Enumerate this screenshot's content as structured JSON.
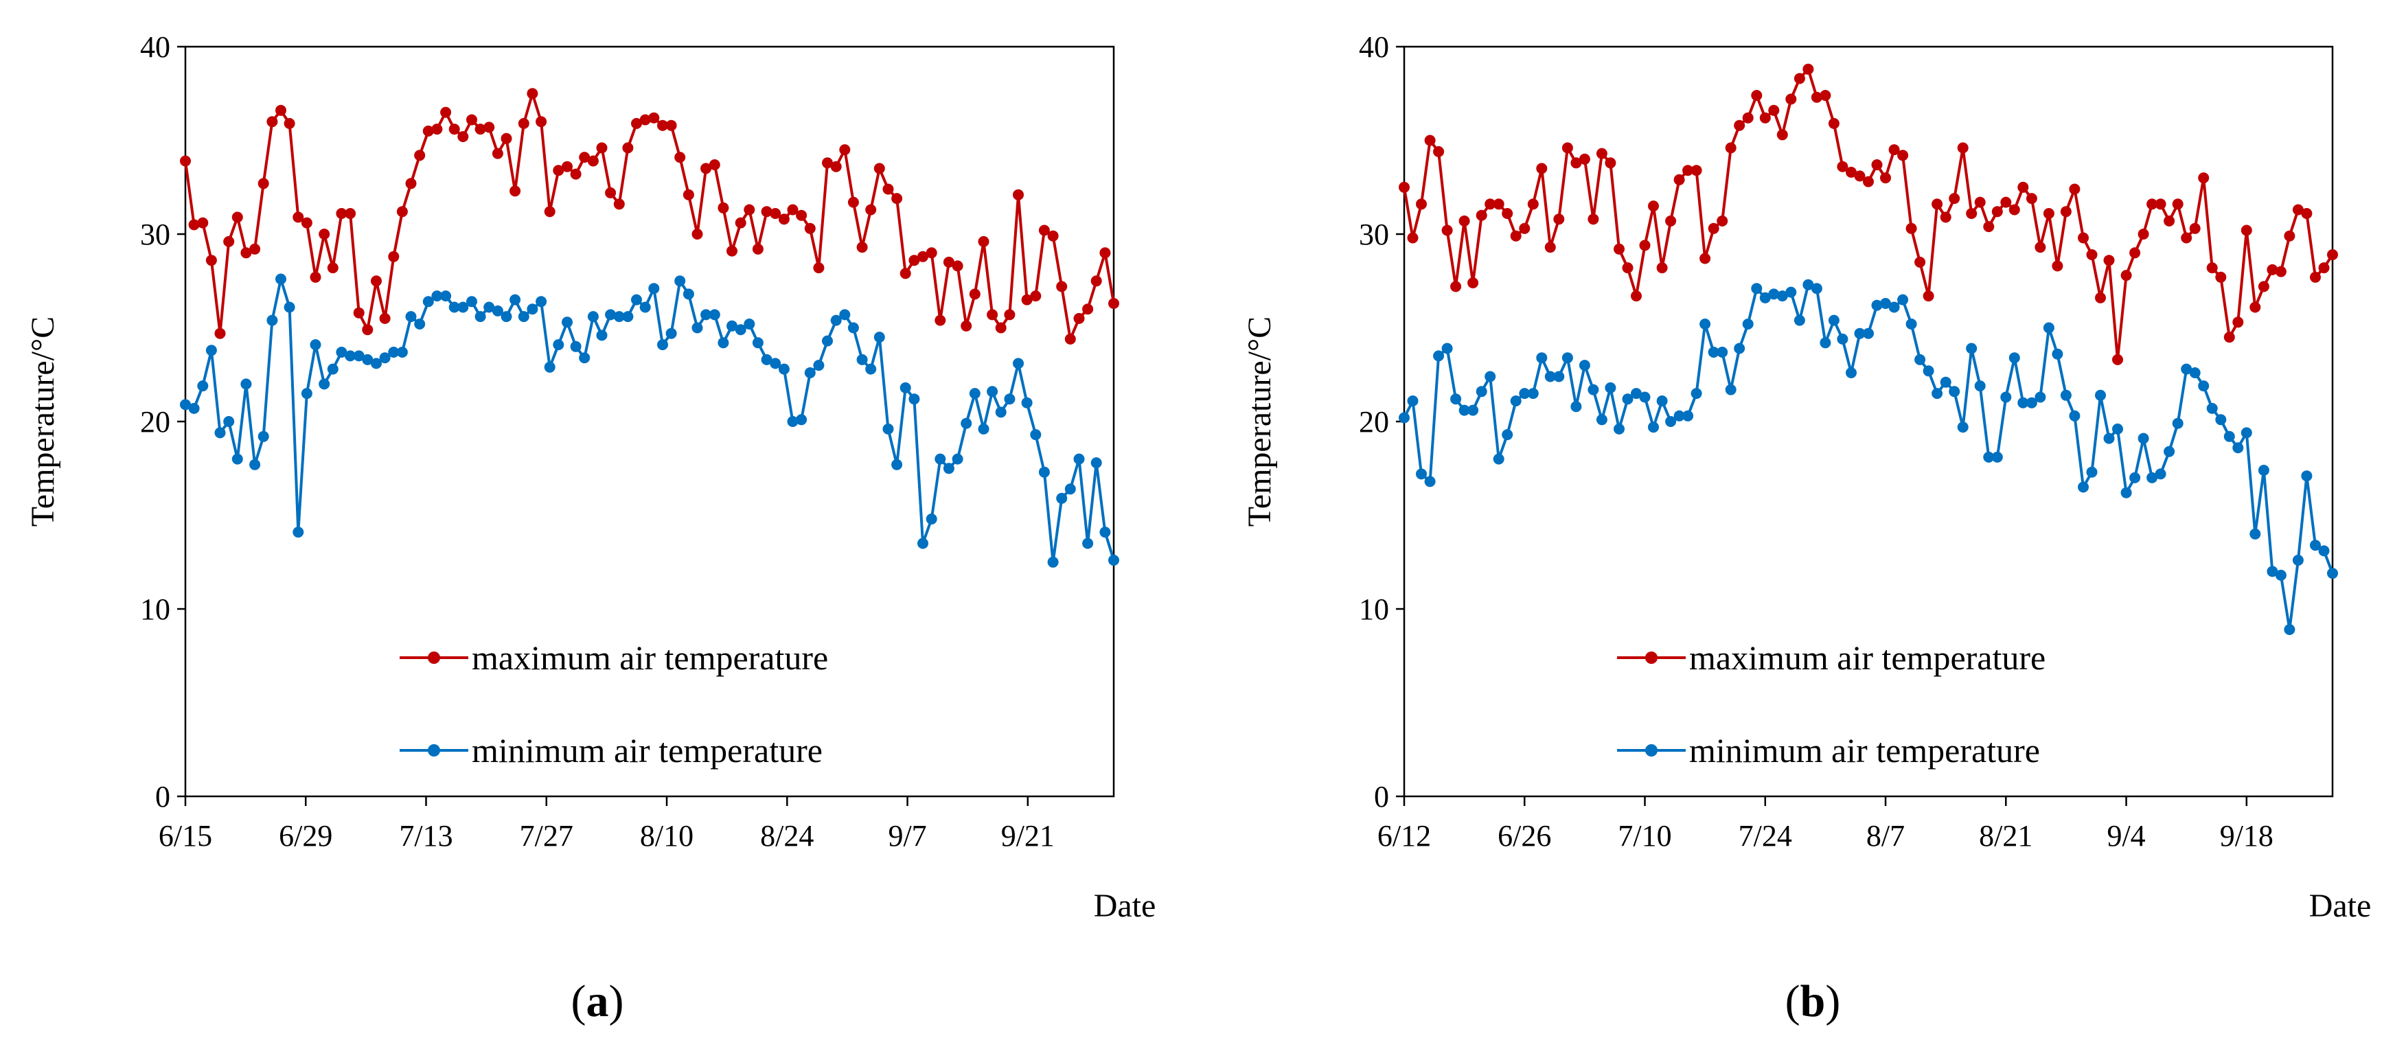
{
  "colors": {
    "max": "#C00000",
    "min": "#0070C0",
    "axis": "#000000"
  },
  "chart_data": [
    {
      "type": "line",
      "panel_label": "a",
      "xlabel": "Date",
      "ylabel": "Temperature/°C",
      "ylim": [
        0,
        40
      ],
      "yticks": [
        "0",
        "10",
        "20",
        "30",
        "40"
      ],
      "xticks": [
        "6/15",
        "6/29",
        "7/13",
        "7/27",
        "8/10",
        "8/24",
        "9/7",
        "9/21"
      ],
      "x_start_day": 0,
      "x_tick_step_days": 14,
      "x_end_day": 108,
      "series": [
        {
          "name": "maximum air temperature",
          "color": "max",
          "values": [
            33.9,
            30.5,
            30.6,
            28.6,
            24.7,
            29.6,
            30.9,
            29.0,
            29.2,
            32.7,
            36.0,
            36.6,
            35.9,
            30.9,
            30.6,
            27.7,
            30.0,
            28.2,
            31.1,
            31.1,
            25.8,
            24.9,
            27.5,
            25.5,
            28.8,
            31.2,
            32.7,
            34.2,
            35.5,
            35.6,
            36.5,
            35.6,
            35.2,
            36.1,
            35.6,
            35.7,
            34.3,
            35.1,
            32.3,
            35.9,
            37.5,
            36.0,
            31.2,
            33.4,
            33.6,
            33.2,
            34.1,
            33.9,
            34.6,
            32.2,
            31.6,
            34.6,
            35.9,
            36.1,
            36.2,
            35.8,
            35.8,
            34.1,
            32.1,
            30.0,
            33.5,
            33.7,
            31.4,
            29.1,
            30.6,
            31.3,
            29.2,
            31.2,
            31.1,
            30.8,
            31.3,
            31.0,
            30.3,
            28.2,
            33.8,
            33.6,
            34.5,
            31.7,
            29.3,
            31.3,
            33.5,
            32.4,
            31.9,
            27.9,
            28.6,
            28.8,
            29.0,
            25.4,
            28.5,
            28.3,
            25.1,
            26.8,
            29.6,
            25.7,
            25.0,
            25.7,
            32.1,
            26.5,
            26.7,
            30.2,
            29.9,
            27.2,
            24.4,
            25.5,
            26.0,
            27.5,
            29.0,
            26.3
          ]
        },
        {
          "name": "minimum air temperature",
          "color": "min",
          "values": [
            20.9,
            20.7,
            21.9,
            23.8,
            19.4,
            20.0,
            18.0,
            22.0,
            17.7,
            19.2,
            25.4,
            27.6,
            26.1,
            14.1,
            21.5,
            24.1,
            22.0,
            22.8,
            23.7,
            23.5,
            23.5,
            23.3,
            23.1,
            23.4,
            23.7,
            23.7,
            25.6,
            25.2,
            26.4,
            26.7,
            26.7,
            26.1,
            26.1,
            26.4,
            25.6,
            26.1,
            25.9,
            25.6,
            26.5,
            25.6,
            26.0,
            26.4,
            22.9,
            24.1,
            25.3,
            24.0,
            23.4,
            25.6,
            24.6,
            25.7,
            25.6,
            25.6,
            26.5,
            26.1,
            27.1,
            24.1,
            24.7,
            27.5,
            26.8,
            25.0,
            25.7,
            25.7,
            24.2,
            25.1,
            24.9,
            25.2,
            24.2,
            23.3,
            23.1,
            22.8,
            20.0,
            20.1,
            22.6,
            23.0,
            24.3,
            25.4,
            25.7,
            25.0,
            23.3,
            22.8,
            24.5,
            19.6,
            17.7,
            21.8,
            21.2,
            13.5,
            14.8,
            18.0,
            17.5,
            18.0,
            19.9,
            21.5,
            19.6,
            21.6,
            20.5,
            21.2,
            23.1,
            21.0,
            19.3,
            17.3,
            12.5,
            15.9,
            16.4,
            18.0,
            13.5,
            17.8,
            14.1,
            12.6
          ]
        }
      ],
      "legend": [
        "maximum air temperature",
        "minimum air temperature"
      ]
    },
    {
      "type": "line",
      "panel_label": "b",
      "xlabel": "Date",
      "ylabel": "Temperature/°C",
      "ylim": [
        0,
        40
      ],
      "yticks": [
        "0",
        "10",
        "20",
        "30",
        "40"
      ],
      "xticks": [
        "6/12",
        "6/26",
        "7/10",
        "7/24",
        "8/7",
        "8/21",
        "9/4",
        "9/18"
      ],
      "x_start_day": 0,
      "x_tick_step_days": 14,
      "x_end_day": 108,
      "series": [
        {
          "name": "maximum air temperature",
          "color": "max",
          "values": [
            32.5,
            29.8,
            31.6,
            35.0,
            34.4,
            30.2,
            27.2,
            30.7,
            27.4,
            31.0,
            31.6,
            31.6,
            31.1,
            29.9,
            30.3,
            31.6,
            33.5,
            29.3,
            30.8,
            34.6,
            33.8,
            34.0,
            30.8,
            34.3,
            33.8,
            29.2,
            28.2,
            26.7,
            29.4,
            31.5,
            28.2,
            30.7,
            32.9,
            33.4,
            33.4,
            28.7,
            30.3,
            30.7,
            34.6,
            35.8,
            36.2,
            37.4,
            36.2,
            36.6,
            35.3,
            37.2,
            38.3,
            38.8,
            37.3,
            37.4,
            35.9,
            33.6,
            33.3,
            33.1,
            32.8,
            33.7,
            33.0,
            34.5,
            34.2,
            30.3,
            28.5,
            26.7,
            31.6,
            30.9,
            31.9,
            34.6,
            31.1,
            31.7,
            30.4,
            31.2,
            31.7,
            31.3,
            32.5,
            31.9,
            29.3,
            31.1,
            28.3,
            31.2,
            32.4,
            29.8,
            28.9,
            26.6,
            28.6,
            23.3,
            27.8,
            29.0,
            30.0,
            31.6,
            31.6,
            30.7,
            31.6,
            29.8,
            30.3,
            33.0,
            28.2,
            27.7,
            24.5,
            25.3,
            30.2,
            26.1,
            27.2,
            28.1,
            28.0,
            29.9,
            31.3,
            31.1,
            27.7,
            28.2,
            28.9
          ]
        },
        {
          "name": "minimum air temperature",
          "color": "min",
          "values": [
            20.2,
            21.1,
            17.2,
            16.8,
            23.5,
            23.9,
            21.2,
            20.6,
            20.6,
            21.6,
            22.4,
            18.0,
            19.3,
            21.1,
            21.5,
            21.5,
            23.4,
            22.4,
            22.4,
            23.4,
            20.8,
            23.0,
            21.7,
            20.1,
            21.8,
            19.6,
            21.2,
            21.5,
            21.3,
            19.7,
            21.1,
            20.0,
            20.3,
            20.3,
            21.5,
            25.2,
            23.7,
            23.7,
            21.7,
            23.9,
            25.2,
            27.1,
            26.6,
            26.8,
            26.7,
            26.9,
            25.4,
            27.3,
            27.1,
            24.2,
            25.4,
            24.4,
            22.6,
            24.7,
            24.7,
            26.2,
            26.3,
            26.1,
            26.5,
            25.2,
            23.3,
            22.7,
            21.5,
            22.1,
            21.6,
            19.7,
            23.9,
            21.9,
            18.1,
            18.1,
            21.3,
            23.4,
            21.0,
            21.0,
            21.3,
            25.0,
            23.6,
            21.4,
            20.3,
            16.5,
            17.3,
            21.4,
            19.1,
            19.6,
            16.2,
            17.0,
            19.1,
            17.0,
            17.2,
            18.4,
            19.9,
            22.8,
            22.6,
            21.9,
            20.7,
            20.1,
            19.2,
            18.6,
            19.4,
            14.0,
            17.4,
            12.0,
            11.8,
            8.9,
            12.6,
            17.1,
            13.4,
            13.1,
            11.9
          ]
        }
      ],
      "legend": [
        "maximum air temperature",
        "minimum air temperature"
      ]
    }
  ]
}
